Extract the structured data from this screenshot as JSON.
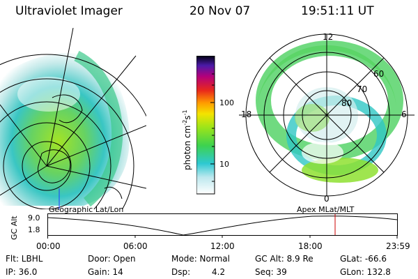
{
  "header": {
    "instrument": "Ultraviolet Imager",
    "date": "20 Nov 07",
    "time": "19:51:11 UT"
  },
  "colorbar": {
    "unit_label": "photon cm",
    "exp1": "-2",
    "unit_s": "s",
    "exp2": "-1",
    "ticks": [
      "100",
      "10"
    ]
  },
  "left_panel": {
    "label": "Geographic Lat/Lon"
  },
  "right_panel": {
    "label": "Apex  MLat/MLT",
    "mlt_labels": {
      "top": "12",
      "left": "18",
      "right": "6",
      "bottom": "0"
    },
    "lat_labels": [
      "60",
      "70",
      "80"
    ]
  },
  "timeline": {
    "ylabel": "GC Alt",
    "y_ticks": [
      "9.0",
      "1.8"
    ],
    "x_ticks": [
      "00:00",
      "06:00",
      "12:00",
      "18:00",
      "23:59"
    ],
    "marker_color": "#cc0000"
  },
  "footer": {
    "filter": "Flt: LBHL",
    "door": "Door: Open",
    "mode": "Mode: Normal",
    "gc_alt": "GC Alt: 8.9 Re",
    "glat": "GLat: -66.6",
    "ip": "IP: 36.0",
    "gain": "Gain: 14",
    "dsp_label": "Dsp:",
    "dsp_value": "4.2",
    "seq": "Seq: 39",
    "glon": "GLon: 132.8"
  }
}
